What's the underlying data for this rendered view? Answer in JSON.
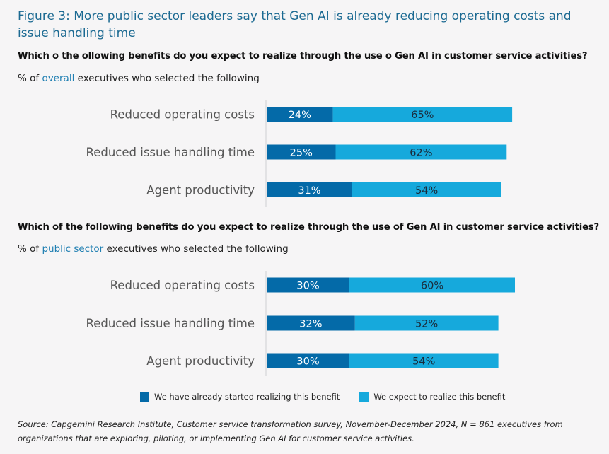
{
  "title": "Figure 3: More public sector leaders say that Gen AI is already reducing operating costs and issue handling time",
  "colors": {
    "started": "#046aa8",
    "expect": "#16a9dc",
    "axis": "#cfd0d2",
    "label": "#555555",
    "started_text": "#ffffff",
    "expect_text": "#1a2a3a"
  },
  "legend": [
    {
      "label": "We have already started realizing this benefit",
      "color": "#046aa8"
    },
    {
      "label": "We expect to realize this benefit",
      "color": "#16a9dc"
    }
  ],
  "source": "Source: Capgemini Research Institute, Customer service transformation survey, November-December 2024, N = 861 executives from organizations that are exploring, piloting, or implementing Gen AI for customer service activities.",
  "chart_data": [
    {
      "type": "bar",
      "orientation": "horizontal",
      "stacked": true,
      "question": "Which o the ollowing benefits do you expect to realize through the use o Gen AI in customer service activities?",
      "subtitle_prefix": "% of ",
      "subtitle_highlight": "overall",
      "subtitle_suffix": " executives who selected the following",
      "categories": [
        "Reduced operating costs",
        "Reduced issue handling time",
        "Agent productivity"
      ],
      "series": [
        {
          "name": "We have already started realizing this benefit",
          "values": [
            24,
            25,
            31
          ]
        },
        {
          "name": "We expect to realize this benefit",
          "values": [
            65,
            62,
            54
          ]
        }
      ],
      "unit": "%",
      "xlim": [
        0,
        100
      ],
      "grid": false,
      "legend": "bottom"
    },
    {
      "type": "bar",
      "orientation": "horizontal",
      "stacked": true,
      "question": "Which of the following benefits do you expect to realize through the use of Gen AI in customer service activities?",
      "subtitle_prefix": "% of ",
      "subtitle_highlight": "public sector",
      "subtitle_suffix": " executives who selected the following",
      "categories": [
        "Reduced operating costs",
        "Reduced issue handling time",
        "Agent productivity"
      ],
      "series": [
        {
          "name": "We have already started realizing this benefit",
          "values": [
            30,
            32,
            30
          ]
        },
        {
          "name": "We expect to realize this benefit",
          "values": [
            60,
            52,
            54
          ]
        }
      ],
      "unit": "%",
      "xlim": [
        0,
        100
      ],
      "grid": false,
      "legend": "bottom"
    }
  ]
}
